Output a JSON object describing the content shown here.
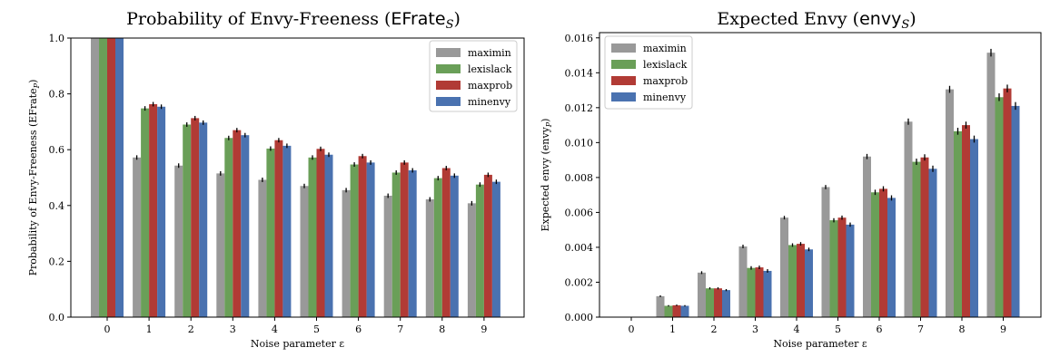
{
  "chart_data": [
    {
      "type": "bar",
      "title_main": "Probability of Envy-Freeness (",
      "title_math": "EFrate",
      "title_sub": "S",
      "title_end": ")",
      "xlabel": "Noise parameter ε",
      "ylabel_main": "Probability of Envy-Freeness (EFrate",
      "ylabel_sub": "P",
      "ylabel_end": ")",
      "categories": [
        "0",
        "1",
        "2",
        "3",
        "4",
        "5",
        "6",
        "7",
        "8",
        "9"
      ],
      "ylim": [
        0,
        1.0
      ],
      "yticks": [
        "0.0",
        "0.2",
        "0.4",
        "0.6",
        "0.8",
        "1.0"
      ],
      "ytick_values": [
        0.0,
        0.2,
        0.4,
        0.6,
        0.8,
        1.0
      ],
      "grid": false,
      "legend_position": "top-right",
      "series": [
        {
          "name": "maximin",
          "color": "#999999",
          "values": [
            1.0,
            0.572,
            0.543,
            0.515,
            0.492,
            0.47,
            0.455,
            0.435,
            0.422,
            0.408
          ],
          "errors": [
            0,
            0.008,
            0.008,
            0.008,
            0.008,
            0.008,
            0.008,
            0.008,
            0.008,
            0.008
          ]
        },
        {
          "name": "lexislack",
          "color": "#6a9f58",
          "values": [
            1.0,
            0.748,
            0.69,
            0.642,
            0.604,
            0.572,
            0.547,
            0.518,
            0.498,
            0.475
          ],
          "errors": [
            0,
            0.008,
            0.008,
            0.008,
            0.008,
            0.008,
            0.008,
            0.008,
            0.008,
            0.008
          ]
        },
        {
          "name": "maxprob",
          "color": "#b13b35",
          "values": [
            1.0,
            0.763,
            0.713,
            0.67,
            0.634,
            0.603,
            0.577,
            0.554,
            0.534,
            0.51
          ],
          "errors": [
            0,
            0.008,
            0.008,
            0.008,
            0.008,
            0.008,
            0.008,
            0.008,
            0.008,
            0.008
          ]
        },
        {
          "name": "minenvy",
          "color": "#4a72b0",
          "values": [
            1.0,
            0.754,
            0.697,
            0.652,
            0.614,
            0.582,
            0.554,
            0.526,
            0.507,
            0.485
          ],
          "errors": [
            0,
            0.008,
            0.008,
            0.008,
            0.008,
            0.008,
            0.008,
            0.008,
            0.008,
            0.008
          ]
        }
      ]
    },
    {
      "type": "bar",
      "title_main": "Expected Envy (",
      "title_math": "envy",
      "title_sub": "S",
      "title_end": ")",
      "xlabel": "Noise parameter ε",
      "ylabel_main": "Expected envy (envy",
      "ylabel_sub": "P",
      "ylabel_end": ")",
      "categories": [
        "0",
        "1",
        "2",
        "3",
        "4",
        "5",
        "6",
        "7",
        "8",
        "9"
      ],
      "ylim": [
        0,
        0.0163
      ],
      "yticks": [
        "0.000",
        "0.002",
        "0.004",
        "0.006",
        "0.008",
        "0.010",
        "0.012",
        "0.014",
        "0.016"
      ],
      "ytick_values": [
        0.0,
        0.002,
        0.004,
        0.006,
        0.008,
        0.01,
        0.012,
        0.014,
        0.016
      ],
      "grid": false,
      "legend_position": "top-left",
      "series": [
        {
          "name": "maximin",
          "color": "#999999",
          "values": [
            0.0,
            0.0012,
            0.00255,
            0.00405,
            0.0057,
            0.00745,
            0.0092,
            0.0112,
            0.01305,
            0.01515
          ],
          "errors": [
            0,
            5e-05,
            8e-05,
            0.0001,
            0.0001,
            0.00012,
            0.00015,
            0.00018,
            0.0002,
            0.00022
          ]
        },
        {
          "name": "lexislack",
          "color": "#6a9f58",
          "values": [
            0.0,
            0.00065,
            0.00165,
            0.00282,
            0.00413,
            0.00555,
            0.00715,
            0.0089,
            0.01065,
            0.0126
          ],
          "errors": [
            0,
            4e-05,
            6e-05,
            0.0001,
            0.0001,
            0.00012,
            0.00015,
            0.00018,
            0.0002,
            0.00022
          ]
        },
        {
          "name": "maxprob",
          "color": "#b13b35",
          "values": [
            0.0,
            0.00068,
            0.00165,
            0.00285,
            0.0042,
            0.0057,
            0.00735,
            0.00915,
            0.011,
            0.0131
          ],
          "errors": [
            0,
            4e-05,
            6e-05,
            0.0001,
            0.0001,
            0.00012,
            0.00015,
            0.00018,
            0.0002,
            0.00022
          ]
        },
        {
          "name": "minenvy",
          "color": "#4a72b0",
          "values": [
            0.0,
            0.00065,
            0.00155,
            0.00265,
            0.00388,
            0.0053,
            0.00683,
            0.0085,
            0.0102,
            0.0121
          ],
          "errors": [
            0,
            4e-05,
            6e-05,
            0.0001,
            0.0001,
            0.00012,
            0.00015,
            0.00018,
            0.0002,
            0.00022
          ]
        }
      ]
    }
  ]
}
